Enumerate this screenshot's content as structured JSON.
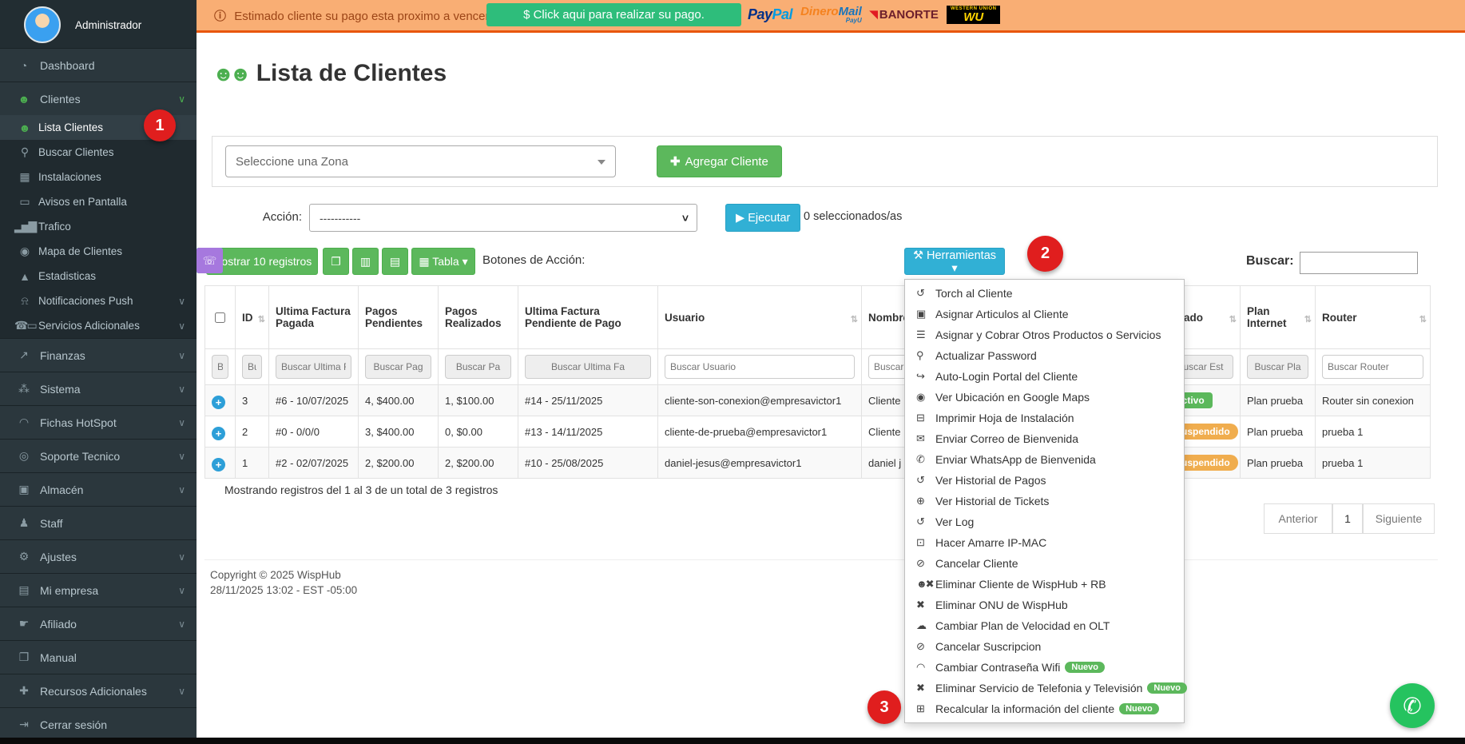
{
  "sidebar": {
    "user": "Administrador",
    "items": [
      {
        "label": "Dashboard",
        "icon": "◔",
        "icon_name": "dashboard-icon",
        "cls": "top"
      },
      {
        "label": "Clientes",
        "icon": "☻",
        "icon_name": "users-icon",
        "cls": "top",
        "iconcls": "green",
        "chevron": "∨",
        "chevcls": "green"
      },
      {
        "label": "Lista Clientes",
        "icon": "☻",
        "icon_name": "users-icon",
        "cls": "sub active",
        "iconcls": "green"
      },
      {
        "label": "Buscar Clientes",
        "icon": "⚲",
        "icon_name": "search-icon",
        "cls": "sub"
      },
      {
        "label": "Instalaciones",
        "icon": "▦",
        "icon_name": "calendar-icon",
        "cls": "sub"
      },
      {
        "label": "Avisos en Pantalla",
        "icon": "▭",
        "icon_name": "monitor-icon",
        "cls": "sub"
      },
      {
        "label": "Trafico",
        "icon": "▂▅▇",
        "icon_name": "bar-chart-icon",
        "cls": "sub"
      },
      {
        "label": "Mapa de Clientes",
        "icon": "◉",
        "icon_name": "map-marker-icon",
        "cls": "sub"
      },
      {
        "label": "Estadisticas",
        "icon": "▲",
        "icon_name": "area-chart-icon",
        "cls": "sub"
      },
      {
        "label": "Notificaciones Push",
        "icon": "⍾",
        "icon_name": "bell-icon",
        "cls": "sub",
        "chevron": "∨"
      },
      {
        "label": "Servicios Adicionales",
        "icon": "☎▭",
        "icon_name": "phone-monitor-icon",
        "cls": "sub",
        "chevron": "∨"
      },
      {
        "label": "Finanzas",
        "icon": "↗",
        "icon_name": "line-chart-icon",
        "cls": "top",
        "chevron": "∨"
      },
      {
        "label": "Sistema",
        "icon": "⁂",
        "icon_name": "sitemap-icon",
        "cls": "top",
        "chevron": "∨"
      },
      {
        "label": "Fichas HotSpot",
        "icon": "◠",
        "icon_name": "wifi-icon",
        "cls": "top",
        "chevron": "∨"
      },
      {
        "label": "Soporte Tecnico",
        "icon": "◎",
        "icon_name": "life-ring-icon",
        "cls": "top",
        "chevron": "∨"
      },
      {
        "label": "Almacén",
        "icon": "▣",
        "icon_name": "box-icon",
        "cls": "top",
        "chevron": "∨"
      },
      {
        "label": "Staff",
        "icon": "♟",
        "icon_name": "person-icon",
        "cls": "top"
      },
      {
        "label": "Ajustes",
        "icon": "⚙",
        "icon_name": "gear-icon",
        "cls": "top",
        "chevron": "∨"
      },
      {
        "label": "Mi empresa",
        "icon": "▤",
        "icon_name": "building-icon",
        "cls": "top",
        "chevron": "∨"
      },
      {
        "label": "Afiliado",
        "icon": "☛",
        "icon_name": "thumbs-up-icon",
        "cls": "top",
        "chevron": "∨"
      },
      {
        "label": "Manual",
        "icon": "❐",
        "icon_name": "book-icon",
        "cls": "top"
      },
      {
        "label": "Recursos Adicionales",
        "icon": "✚",
        "icon_name": "plus-icon",
        "cls": "top",
        "chevron": "∨"
      },
      {
        "label": "Cerrar sesión",
        "icon": "⇥",
        "icon_name": "logout-icon",
        "cls": "top"
      }
    ]
  },
  "banner": {
    "info_icon": "ⓘ",
    "message": "Estimado cliente su pago esta proximo a vencer el dia 3 de este mes,",
    "pay_button": "$ Click aqui para realizar su pago.",
    "paypal_1": "Pay",
    "paypal_2": "Pal",
    "dinero_1": "Dinero",
    "dinero_2": "Mail",
    "dinero_sub": "PayU",
    "banorte_mark": "◥",
    "banorte": "BANORTE",
    "wu_top": "WESTERN UNION",
    "wu": "WU"
  },
  "page": {
    "title": "Lista de Clientes",
    "title_icon": "☻☻"
  },
  "zone_panel": {
    "select_placeholder": "Seleccione una Zona",
    "add_plus": "✚",
    "add_label": "Agregar Cliente"
  },
  "action_bar": {
    "label": "Acción:",
    "select_value": "-----------",
    "select_caret": "˅",
    "play": "▶",
    "execute": "Ejecutar",
    "selected_info": "0 seleccionados/as"
  },
  "toolbar": {
    "show_records": "Mostrar 10 registros",
    "copy_icon": "❐",
    "excel_icon": "▥",
    "doc_icon": "▤",
    "tabla_icon": "▦",
    "tabla": "Tabla",
    "caret": "▾",
    "buttons_label": "Botones de Acción:",
    "squares": [
      {
        "name": "help-button",
        "glyph": "?",
        "cls": "green"
      },
      {
        "name": "refresh-button",
        "glyph": "⇆",
        "cls": "blue"
      },
      {
        "name": "power-on-button",
        "glyph": "⊙",
        "cls": "green"
      },
      {
        "name": "power-off-button",
        "glyph": "⊙",
        "cls": "orange"
      },
      {
        "name": "user-button",
        "glyph": "☻",
        "cls": "blue"
      },
      {
        "name": "network-button",
        "glyph": "⊕",
        "cls": "green"
      },
      {
        "name": "chart-button",
        "glyph": "▂▅▇",
        "cls": "blue small"
      },
      {
        "name": "transfer-button",
        "glyph": "⇄",
        "cls": "blue"
      },
      {
        "name": "globe-button",
        "glyph": "⊕",
        "cls": "blue"
      },
      {
        "name": "phone-button",
        "glyph": "☏",
        "cls": "purple"
      }
    ],
    "tools_icon": "⚒",
    "tools": "Herramientas",
    "search_label": "Buscar:"
  },
  "table": {
    "expand_glyph": "+",
    "columns": [
      {
        "label": ""
      },
      {
        "label": "ID",
        "sort": "⇅"
      },
      {
        "label": "Ultima Factura Pagada"
      },
      {
        "label": "Pagos Pendientes"
      },
      {
        "label": "Pagos Realizados"
      },
      {
        "label": "Ultima Factura Pendiente de Pago"
      },
      {
        "label": "Usuario",
        "sort": "⇅"
      },
      {
        "label": "Nombre",
        "sort": "⇅"
      },
      {
        "label": "Estado",
        "sort": "⇅"
      },
      {
        "label": "Plan Internet",
        "sort": "⇅"
      },
      {
        "label": "Router",
        "sort": "⇅"
      }
    ],
    "filters": [
      {
        "ph": "Bu",
        "cls": "gray"
      },
      {
        "ph": "Bus",
        "cls": "gray"
      },
      {
        "ph": "Buscar Ultima F",
        "cls": "gray"
      },
      {
        "ph": "Buscar Pag",
        "cls": "gray"
      },
      {
        "ph": "Buscar Pa",
        "cls": "gray"
      },
      {
        "ph": "Buscar Ultima Fa",
        "cls": "gray"
      },
      {
        "ph": "Buscar Usuario",
        "cls": "white"
      },
      {
        "ph": "Buscar Nombre",
        "cls": "white"
      },
      {
        "ph": "Buscar Est",
        "cls": "gray"
      },
      {
        "ph": "Buscar Pla",
        "cls": "gray"
      },
      {
        "ph": "Buscar Router",
        "cls": "white"
      }
    ],
    "rows": [
      {
        "id": "3",
        "ufp": "#6 - 10/07/2025",
        "pp": "4, $400.00",
        "pr": "1, $100.00",
        "ufpp": "#14 - 25/11/2025",
        "user": "cliente-son-conexion@empresavictor1",
        "name": "Cliente",
        "status": "Activo",
        "scls": "green",
        "plan": "Plan prueba",
        "router": "Router sin conexion",
        "rowcls": "odd"
      },
      {
        "id": "2",
        "ufp": "#0 - 0/0/0",
        "pp": "3, $400.00",
        "pr": "0, $0.00",
        "ufpp": "#13 - 14/11/2025",
        "user": "cliente-de-prueba@empresavictor1",
        "name": "Cliente",
        "status": "Suspendido",
        "scls": "orange",
        "plan": "Plan prueba",
        "router": "prueba 1",
        "rowcls": "even"
      },
      {
        "id": "1",
        "ufp": "#2 - 02/07/2025",
        "pp": "2, $200.00",
        "pr": "2, $200.00",
        "ufpp": "#10 - 25/08/2025",
        "user": "daniel-jesus@empresavictor1",
        "name": "daniel j",
        "status": "Suspendido",
        "scls": "orange",
        "plan": "Plan prueba",
        "router": "prueba 1",
        "rowcls": "odd"
      }
    ]
  },
  "dropdown": {
    "items": [
      {
        "icon": "↺",
        "icon_name": "history-icon",
        "label": "Torch al Cliente"
      },
      {
        "icon": "▣",
        "icon_name": "dolly-icon",
        "label": "Asignar Articulos al Cliente"
      },
      {
        "icon": "☰",
        "icon_name": "list-icon",
        "label": "Asignar y Cobrar Otros Productos o Servicios"
      },
      {
        "icon": "⚲",
        "icon_name": "key-icon",
        "label": "Actualizar Password"
      },
      {
        "icon": "↪",
        "icon_name": "sign-in-icon",
        "label": "Auto-Login Portal del Cliente"
      },
      {
        "icon": "◉",
        "icon_name": "map-marker-icon",
        "label": "Ver Ubicación en Google Maps"
      },
      {
        "icon": "⊟",
        "icon_name": "printer-icon",
        "label": "Imprimir Hoja de Instalación"
      },
      {
        "icon": "✉",
        "icon_name": "envelope-icon",
        "label": "Enviar Correo de Bienvenida"
      },
      {
        "icon": "✆",
        "icon_name": "whatsapp-icon",
        "label": "Enviar WhatsApp de Bienvenida"
      },
      {
        "icon": "↺",
        "icon_name": "history-icon",
        "label": "Ver Historial de Pagos"
      },
      {
        "icon": "⊕",
        "icon_name": "life-ring-icon",
        "label": "Ver Historial de Tickets"
      },
      {
        "icon": "↺",
        "icon_name": "history-icon",
        "label": "Ver Log"
      },
      {
        "icon": "⊡",
        "icon_name": "desktop-icon",
        "label": "Hacer Amarre IP-MAC"
      },
      {
        "icon": "⊘",
        "icon_name": "ban-icon",
        "label": "Cancelar Cliente"
      },
      {
        "icon": "☻✖",
        "icon_name": "user-times-icon",
        "label": "Eliminar Cliente de WispHub + RB"
      },
      {
        "icon": "✖",
        "icon_name": "times-icon",
        "label": "Eliminar ONU de WispHub"
      },
      {
        "icon": "☁",
        "icon_name": "cloud-icon",
        "label": "Cambiar Plan de Velocidad en OLT"
      },
      {
        "icon": "⊘",
        "icon_name": "ban-icon",
        "label": "Cancelar Suscripcion"
      },
      {
        "icon": "◠",
        "icon_name": "wifi-icon",
        "label": "Cambiar Contraseña Wifi",
        "badge": "Nuevo"
      },
      {
        "icon": "✖",
        "icon_name": "times-icon",
        "label": "Eliminar Servicio de Telefonia y Televisión",
        "badge": "Nuevo"
      },
      {
        "icon": "⊞",
        "icon_name": "table-icon",
        "label": "Recalcular la información del cliente",
        "badge": "Nuevo"
      }
    ]
  },
  "footer": {
    "showing": "Mostrando registros del 1 al 3 de un total de 3 registros",
    "prev": "Anterior",
    "page": "1",
    "next": "Siguiente",
    "copyright": "Copyright © 2025 WispHub",
    "datetime": "28/11/2025 13:02 - EST -05:00"
  },
  "annotations": {
    "step1": "1",
    "step2": "2",
    "step3": "3"
  },
  "whatsapp_icon": "✆",
  "colors": {
    "accent_green": "#5cb85c",
    "accent_blue": "#31b0d5",
    "accent_orange": "#f0ad4e",
    "accent_purple": "#a678de",
    "banner_bg": "#f9ae74",
    "annotation_red": "#e01e1e",
    "whatsapp_green": "#25c35f"
  }
}
